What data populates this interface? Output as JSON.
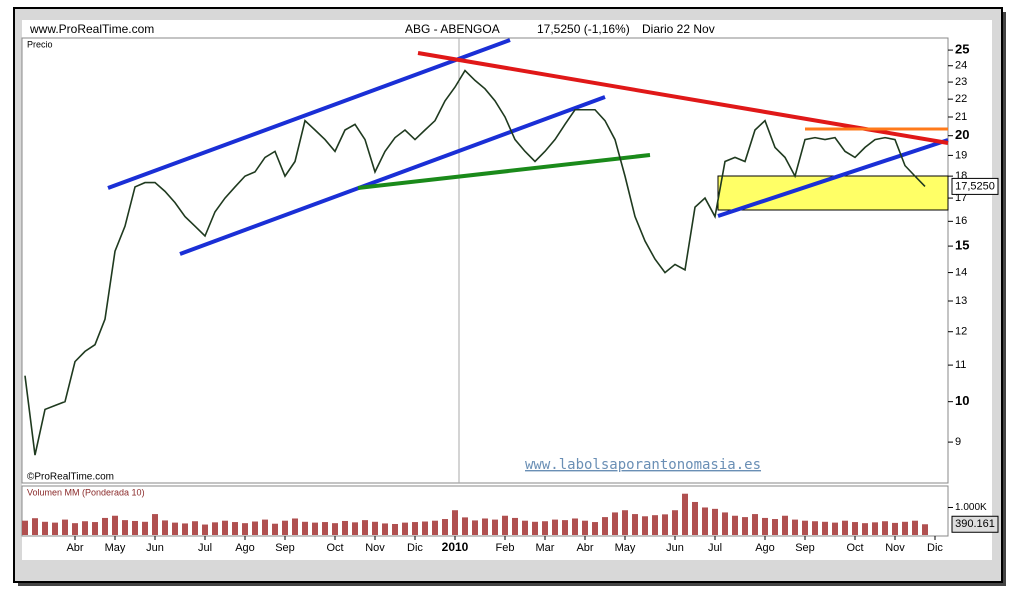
{
  "chart_data": {
    "type": "line",
    "site": "www.ProRealTime.com",
    "title": "ABG - ABENGOA",
    "quote": "17,5250 (-1,16%)",
    "period": "Diario  22 Nov",
    "price_label": "Precio",
    "copyright": "©ProRealTime.com",
    "watermark": "www.labolsaporantonomasia.es",
    "volume_label": "Volumen MM (Ponderada 10)",
    "log_scale": true,
    "categories": [
      null,
      null,
      null,
      null,
      null,
      "Abr",
      null,
      null,
      null,
      "May",
      null,
      null,
      null,
      "Jun",
      null,
      null,
      null,
      null,
      "Jul",
      null,
      null,
      null,
      "Ago",
      null,
      null,
      null,
      "Sep",
      null,
      null,
      null,
      null,
      "Oct",
      null,
      null,
      null,
      "Nov",
      null,
      null,
      null,
      "Dic",
      null,
      null,
      null,
      "2010",
      null,
      null,
      null,
      null,
      "Feb",
      null,
      null,
      null,
      "Mar",
      null,
      null,
      null,
      "Abr",
      null,
      null,
      null,
      "May",
      null,
      null,
      null,
      null,
      "Jun",
      null,
      null,
      null,
      "Jul",
      null,
      null,
      null,
      null,
      "Ago",
      null,
      null,
      null,
      "Sep",
      null,
      null,
      null,
      null,
      "Oct",
      null,
      null,
      null,
      "Nov",
      null,
      null,
      null,
      "Dic"
    ],
    "series": [
      {
        "name": "Precio",
        "color": "#1f3a1f",
        "values": [
          10.7,
          8.7,
          9.8,
          9.9,
          10.0,
          11.1,
          11.4,
          11.6,
          12.4,
          14.8,
          15.8,
          17.5,
          17.7,
          17.7,
          17.3,
          16.8,
          16.2,
          15.8,
          15.4,
          16.4,
          17.0,
          17.5,
          18.0,
          18.2,
          18.9,
          19.2,
          18.0,
          18.7,
          20.8,
          20.3,
          19.8,
          19.2,
          20.3,
          20.6,
          19.8,
          18.2,
          19.2,
          19.9,
          20.3,
          19.8,
          20.3,
          20.8,
          21.9,
          22.7,
          23.7,
          23.1,
          22.6,
          21.9,
          21.0,
          19.8,
          19.2,
          18.7,
          19.2,
          19.8,
          20.6,
          21.4,
          21.4,
          21.4,
          20.8,
          19.8,
          18.0,
          16.2,
          15.2,
          14.5,
          14.0,
          14.3,
          14.1,
          16.6,
          17.0,
          16.2,
          18.7,
          18.9,
          18.7,
          20.3,
          20.8,
          19.4,
          18.9,
          18.0,
          19.8,
          19.9,
          19.8,
          19.9,
          19.2,
          18.9,
          19.4,
          19.8,
          19.9,
          19.8,
          18.5,
          18.0,
          17.525,
          null
        ],
        "value_labels": [
          null,
          null,
          null,
          null,
          null,
          null,
          null,
          null,
          null,
          null,
          null,
          null,
          null,
          null,
          null,
          null,
          null,
          null,
          null,
          null,
          null,
          null,
          null,
          null,
          null,
          null,
          null,
          null,
          null,
          null,
          null,
          null,
          null,
          null,
          null,
          null,
          null,
          null,
          null,
          null,
          null,
          null,
          null,
          null,
          null,
          null,
          null,
          null,
          null,
          null,
          null,
          null,
          null,
          null,
          null,
          null,
          null,
          null,
          null,
          null,
          null,
          null,
          null,
          null,
          null,
          null,
          null,
          null,
          null,
          null,
          null,
          null,
          null,
          null,
          null,
          null,
          null,
          null,
          null,
          null,
          null,
          null,
          null,
          null,
          null,
          null,
          null,
          null,
          null,
          null,
          "17,5250",
          null
        ]
      },
      {
        "name": "Volumen",
        "color": "#b05050",
        "values": [
          520000,
          610000,
          480000,
          450000,
          560000,
          430000,
          500000,
          470000,
          620000,
          700000,
          540000,
          510000,
          480000,
          760000,
          530000,
          450000,
          420000,
          500000,
          380000,
          460000,
          520000,
          470000,
          430000,
          490000,
          560000,
          410000,
          520000,
          600000,
          480000,
          450000,
          470000,
          430000,
          510000,
          460000,
          540000,
          480000,
          420000,
          400000,
          450000,
          470000,
          490000,
          520000,
          580000,
          900000,
          640000,
          530000,
          600000,
          560000,
          700000,
          620000,
          520000,
          480000,
          500000,
          560000,
          540000,
          600000,
          520000,
          470000,
          650000,
          820000,
          900000,
          760000,
          680000,
          720000,
          750000,
          900000,
          1500000,
          1200000,
          1000000,
          950000,
          820000,
          700000,
          650000,
          760000,
          620000,
          580000,
          700000,
          560000,
          520000,
          500000,
          480000,
          450000,
          520000,
          470000,
          430000,
          460000,
          500000,
          440000,
          480000,
          520000,
          390161,
          null
        ],
        "value_labels": [
          null,
          null,
          null,
          null,
          null,
          null,
          null,
          null,
          null,
          null,
          null,
          null,
          null,
          null,
          null,
          null,
          null,
          null,
          null,
          null,
          null,
          null,
          null,
          null,
          null,
          null,
          null,
          null,
          null,
          null,
          null,
          null,
          null,
          null,
          null,
          null,
          null,
          null,
          null,
          null,
          null,
          null,
          null,
          null,
          null,
          null,
          null,
          null,
          null,
          null,
          null,
          null,
          null,
          null,
          null,
          null,
          null,
          null,
          null,
          null,
          null,
          null,
          null,
          null,
          null,
          null,
          null,
          null,
          null,
          null,
          null,
          null,
          null,
          null,
          null,
          null,
          null,
          null,
          null,
          null,
          null,
          null,
          null,
          null,
          null,
          null,
          null,
          null,
          null,
          null,
          "390.161",
          null
        ]
      }
    ],
    "ylim": [
      8.09,
      25.8
    ],
    "yticks": [
      9,
      10,
      11,
      12,
      13,
      14,
      15,
      16,
      17,
      18,
      19,
      20,
      21,
      22,
      23,
      24,
      25
    ],
    "y2lim": [
      0,
      1780000
    ],
    "y2ticks": [
      {
        "value": 1000000,
        "label": "1.000K"
      }
    ]
  }
}
